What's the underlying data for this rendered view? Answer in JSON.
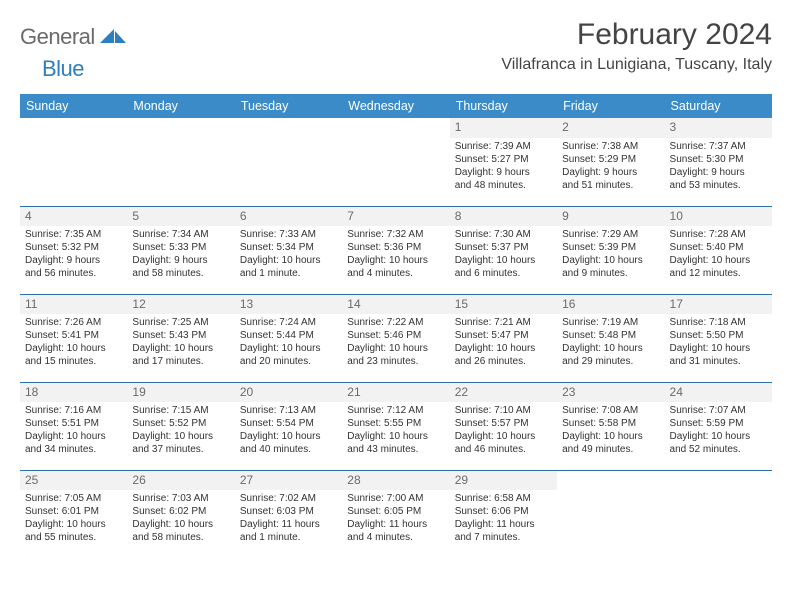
{
  "brand": {
    "general": "General",
    "blue": "Blue"
  },
  "title": "February 2024",
  "location": "Villafranca in Lunigiana, Tuscany, Italy",
  "day_headers": [
    "Sunday",
    "Monday",
    "Tuesday",
    "Wednesday",
    "Thursday",
    "Friday",
    "Saturday"
  ],
  "colors": {
    "header_bg": "#3b8bc8",
    "header_text": "#ffffff",
    "daynum_bg": "#f2f2f2",
    "border": "#2d6fa3"
  },
  "weeks": [
    [
      null,
      null,
      null,
      null,
      {
        "n": "1",
        "sr": "Sunrise: 7:39 AM",
        "ss": "Sunset: 5:27 PM",
        "d1": "Daylight: 9 hours",
        "d2": "and 48 minutes."
      },
      {
        "n": "2",
        "sr": "Sunrise: 7:38 AM",
        "ss": "Sunset: 5:29 PM",
        "d1": "Daylight: 9 hours",
        "d2": "and 51 minutes."
      },
      {
        "n": "3",
        "sr": "Sunrise: 7:37 AM",
        "ss": "Sunset: 5:30 PM",
        "d1": "Daylight: 9 hours",
        "d2": "and 53 minutes."
      }
    ],
    [
      {
        "n": "4",
        "sr": "Sunrise: 7:35 AM",
        "ss": "Sunset: 5:32 PM",
        "d1": "Daylight: 9 hours",
        "d2": "and 56 minutes."
      },
      {
        "n": "5",
        "sr": "Sunrise: 7:34 AM",
        "ss": "Sunset: 5:33 PM",
        "d1": "Daylight: 9 hours",
        "d2": "and 58 minutes."
      },
      {
        "n": "6",
        "sr": "Sunrise: 7:33 AM",
        "ss": "Sunset: 5:34 PM",
        "d1": "Daylight: 10 hours",
        "d2": "and 1 minute."
      },
      {
        "n": "7",
        "sr": "Sunrise: 7:32 AM",
        "ss": "Sunset: 5:36 PM",
        "d1": "Daylight: 10 hours",
        "d2": "and 4 minutes."
      },
      {
        "n": "8",
        "sr": "Sunrise: 7:30 AM",
        "ss": "Sunset: 5:37 PM",
        "d1": "Daylight: 10 hours",
        "d2": "and 6 minutes."
      },
      {
        "n": "9",
        "sr": "Sunrise: 7:29 AM",
        "ss": "Sunset: 5:39 PM",
        "d1": "Daylight: 10 hours",
        "d2": "and 9 minutes."
      },
      {
        "n": "10",
        "sr": "Sunrise: 7:28 AM",
        "ss": "Sunset: 5:40 PM",
        "d1": "Daylight: 10 hours",
        "d2": "and 12 minutes."
      }
    ],
    [
      {
        "n": "11",
        "sr": "Sunrise: 7:26 AM",
        "ss": "Sunset: 5:41 PM",
        "d1": "Daylight: 10 hours",
        "d2": "and 15 minutes."
      },
      {
        "n": "12",
        "sr": "Sunrise: 7:25 AM",
        "ss": "Sunset: 5:43 PM",
        "d1": "Daylight: 10 hours",
        "d2": "and 17 minutes."
      },
      {
        "n": "13",
        "sr": "Sunrise: 7:24 AM",
        "ss": "Sunset: 5:44 PM",
        "d1": "Daylight: 10 hours",
        "d2": "and 20 minutes."
      },
      {
        "n": "14",
        "sr": "Sunrise: 7:22 AM",
        "ss": "Sunset: 5:46 PM",
        "d1": "Daylight: 10 hours",
        "d2": "and 23 minutes."
      },
      {
        "n": "15",
        "sr": "Sunrise: 7:21 AM",
        "ss": "Sunset: 5:47 PM",
        "d1": "Daylight: 10 hours",
        "d2": "and 26 minutes."
      },
      {
        "n": "16",
        "sr": "Sunrise: 7:19 AM",
        "ss": "Sunset: 5:48 PM",
        "d1": "Daylight: 10 hours",
        "d2": "and 29 minutes."
      },
      {
        "n": "17",
        "sr": "Sunrise: 7:18 AM",
        "ss": "Sunset: 5:50 PM",
        "d1": "Daylight: 10 hours",
        "d2": "and 31 minutes."
      }
    ],
    [
      {
        "n": "18",
        "sr": "Sunrise: 7:16 AM",
        "ss": "Sunset: 5:51 PM",
        "d1": "Daylight: 10 hours",
        "d2": "and 34 minutes."
      },
      {
        "n": "19",
        "sr": "Sunrise: 7:15 AM",
        "ss": "Sunset: 5:52 PM",
        "d1": "Daylight: 10 hours",
        "d2": "and 37 minutes."
      },
      {
        "n": "20",
        "sr": "Sunrise: 7:13 AM",
        "ss": "Sunset: 5:54 PM",
        "d1": "Daylight: 10 hours",
        "d2": "and 40 minutes."
      },
      {
        "n": "21",
        "sr": "Sunrise: 7:12 AM",
        "ss": "Sunset: 5:55 PM",
        "d1": "Daylight: 10 hours",
        "d2": "and 43 minutes."
      },
      {
        "n": "22",
        "sr": "Sunrise: 7:10 AM",
        "ss": "Sunset: 5:57 PM",
        "d1": "Daylight: 10 hours",
        "d2": "and 46 minutes."
      },
      {
        "n": "23",
        "sr": "Sunrise: 7:08 AM",
        "ss": "Sunset: 5:58 PM",
        "d1": "Daylight: 10 hours",
        "d2": "and 49 minutes."
      },
      {
        "n": "24",
        "sr": "Sunrise: 7:07 AM",
        "ss": "Sunset: 5:59 PM",
        "d1": "Daylight: 10 hours",
        "d2": "and 52 minutes."
      }
    ],
    [
      {
        "n": "25",
        "sr": "Sunrise: 7:05 AM",
        "ss": "Sunset: 6:01 PM",
        "d1": "Daylight: 10 hours",
        "d2": "and 55 minutes."
      },
      {
        "n": "26",
        "sr": "Sunrise: 7:03 AM",
        "ss": "Sunset: 6:02 PM",
        "d1": "Daylight: 10 hours",
        "d2": "and 58 minutes."
      },
      {
        "n": "27",
        "sr": "Sunrise: 7:02 AM",
        "ss": "Sunset: 6:03 PM",
        "d1": "Daylight: 11 hours",
        "d2": "and 1 minute."
      },
      {
        "n": "28",
        "sr": "Sunrise: 7:00 AM",
        "ss": "Sunset: 6:05 PM",
        "d1": "Daylight: 11 hours",
        "d2": "and 4 minutes."
      },
      {
        "n": "29",
        "sr": "Sunrise: 6:58 AM",
        "ss": "Sunset: 6:06 PM",
        "d1": "Daylight: 11 hours",
        "d2": "and 7 minutes."
      },
      null,
      null
    ]
  ]
}
